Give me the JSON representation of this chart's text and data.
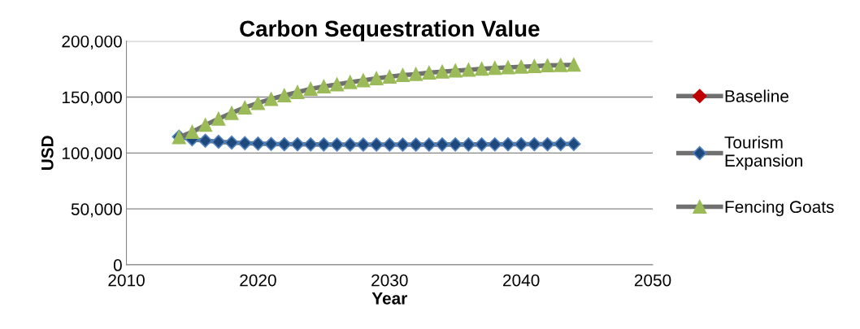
{
  "chart_data": {
    "type": "line",
    "title": "Carbon Sequestration Value",
    "xlabel": "Year",
    "ylabel": "USD",
    "x": [
      2014,
      2015,
      2016,
      2017,
      2018,
      2019,
      2020,
      2021,
      2022,
      2023,
      2024,
      2025,
      2026,
      2027,
      2028,
      2029,
      2030,
      2031,
      2032,
      2033,
      2034,
      2035,
      2036,
      2037,
      2038,
      2039,
      2040,
      2041,
      2042,
      2043,
      2044
    ],
    "series": [
      {
        "name": "Baseline",
        "color": "#c00000",
        "marker": "diamond",
        "values": [
          null,
          null,
          null,
          null,
          null,
          null,
          null,
          null,
          null,
          null,
          null,
          null,
          null,
          null,
          null,
          null,
          null,
          null,
          null,
          null,
          null,
          null,
          null,
          null,
          null,
          null,
          null,
          null,
          null,
          null,
          null
        ]
      },
      {
        "name": "Tourism Expansion",
        "color": "#1f497d",
        "marker": "diamond",
        "values": [
          114500,
          112300,
          111000,
          110000,
          109300,
          108800,
          108400,
          108100,
          107900,
          107800,
          107700,
          107600,
          107500,
          107500,
          107500,
          107500,
          107500,
          107500,
          107500,
          107500,
          107600,
          107600,
          107600,
          107700,
          107700,
          107800,
          107800,
          107900,
          107900,
          108000,
          108000
        ]
      },
      {
        "name": "Fencing Goats",
        "color": "#9bbb59",
        "marker": "triangle",
        "values": [
          114000,
          118800,
          125000,
          130600,
          135700,
          140600,
          144600,
          148200,
          151400,
          154300,
          157200,
          159400,
          161200,
          163200,
          164900,
          166700,
          168100,
          169600,
          170400,
          171700,
          172700,
          173500,
          174300,
          175200,
          176000,
          176500,
          177100,
          177600,
          178200,
          178500,
          178800
        ]
      }
    ],
    "xlim": [
      2010,
      2050
    ],
    "xticks": [
      2010,
      2020,
      2030,
      2040,
      2050
    ],
    "ylim": [
      0,
      200000
    ],
    "yticks": [
      {
        "value": 0,
        "label": "0"
      },
      {
        "value": 50000,
        "label": "50,000"
      },
      {
        "value": 100000,
        "label": "100,000"
      },
      {
        "value": 150000,
        "label": "150,000"
      },
      {
        "value": 200000,
        "label": "200,000"
      }
    ],
    "grid": "y",
    "legend": "right",
    "line_style": "solid"
  }
}
